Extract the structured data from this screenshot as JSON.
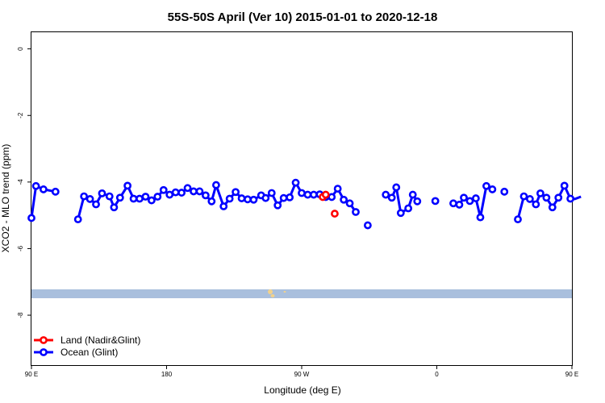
{
  "chart_data": {
    "type": "line",
    "title": "55S-50S April (Ver 10)   2015-01-01 to 2020-12-18",
    "xlabel": "Longitude (deg E)",
    "ylabel": "XCO2 - MLO trend (ppm)",
    "xlim": [
      90,
      450
    ],
    "ylim": [
      -9.5,
      0.5
    ],
    "grid": false,
    "legend_position": "bottom-left",
    "x_ticks": [
      {
        "value": 90,
        "label": "90 E"
      },
      {
        "value": 180,
        "label": "180"
      },
      {
        "value": 270,
        "label": "90 W"
      },
      {
        "value": 360,
        "label": "0"
      },
      {
        "value": 450,
        "label": "90 E"
      },
      {
        "value": 540,
        "label": "180"
      }
    ],
    "y_ticks": [
      {
        "value": 0,
        "label": "0"
      },
      {
        "value": -2,
        "label": "-2"
      },
      {
        "value": -4,
        "label": "-4"
      },
      {
        "value": -6,
        "label": "-6"
      },
      {
        "value": -8,
        "label": "-8"
      }
    ],
    "series": [
      {
        "name": "Land (Nadir&Glint)",
        "color": "#ff0000",
        "points": [
          [
            284,
            -4.45
          ],
          [
            286,
            -4.38
          ],
          [
            292,
            -4.95
          ]
        ]
      },
      {
        "name": "Ocean (Glint)",
        "color": "#0000ff",
        "segments": [
          [
            [
              90,
              -5.08
            ],
            [
              93,
              -4.12
            ],
            [
              98,
              -4.22
            ],
            [
              106,
              -4.29
            ]
          ],
          [
            [
              121,
              -5.12
            ],
            [
              125,
              -4.43
            ],
            [
              129,
              -4.51
            ],
            [
              133,
              -4.67
            ],
            [
              137,
              -4.34
            ],
            [
              142,
              -4.43
            ],
            [
              145,
              -4.76
            ],
            [
              149,
              -4.47
            ],
            [
              154,
              -4.11
            ],
            [
              158,
              -4.5
            ],
            [
              162,
              -4.5
            ],
            [
              166,
              -4.44
            ],
            [
              170,
              -4.55
            ],
            [
              174,
              -4.44
            ],
            [
              178,
              -4.24
            ],
            [
              182,
              -4.38
            ],
            [
              186,
              -4.31
            ],
            [
              190,
              -4.32
            ],
            [
              194,
              -4.18
            ],
            [
              198,
              -4.28
            ],
            [
              202,
              -4.28
            ],
            [
              206,
              -4.4
            ],
            [
              210,
              -4.58
            ],
            [
              213,
              -4.09
            ],
            [
              218,
              -4.73
            ],
            [
              222,
              -4.5
            ],
            [
              226,
              -4.3
            ],
            [
              230,
              -4.49
            ],
            [
              234,
              -4.52
            ],
            [
              238,
              -4.53
            ],
            [
              243,
              -4.4
            ],
            [
              246,
              -4.48
            ],
            [
              250,
              -4.33
            ],
            [
              254,
              -4.7
            ],
            [
              258,
              -4.48
            ],
            [
              262,
              -4.46
            ],
            [
              266,
              -4.02
            ],
            [
              270,
              -4.33
            ],
            [
              274,
              -4.38
            ],
            [
              278,
              -4.38
            ],
            [
              282,
              -4.37
            ],
            [
              286,
              -4.45
            ],
            [
              290,
              -4.45
            ],
            [
              294,
              -4.2
            ],
            [
              298,
              -4.53
            ],
            [
              302,
              -4.64
            ],
            [
              306,
              -4.9
            ]
          ]
        ],
        "isolated": [
          [
            314,
            -5.3
          ],
          [
            426,
            -4.5
          ],
          [
            435,
            -4.42
          ],
          [
            439,
            -4.45
          ]
        ],
        "segments_right": [
          [
            [
              326,
              -4.38
            ],
            [
              330,
              -4.47
            ],
            [
              333,
              -4.16
            ],
            [
              336,
              -4.93
            ],
            [
              341,
              -4.79
            ],
            [
              344,
              -4.38
            ],
            [
              347,
              -4.58
            ]
          ],
          [
            [
              359,
              -4.57
            ]
          ],
          [
            [
              371,
              -4.64
            ],
            [
              375,
              -4.68
            ],
            [
              378,
              -4.47
            ],
            [
              382,
              -4.57
            ],
            [
              386,
              -4.49
            ],
            [
              389,
              -5.06
            ],
            [
              393,
              -4.12
            ],
            [
              397,
              -4.22
            ]
          ],
          [
            [
              405,
              -4.29
            ]
          ],
          [
            [
              414,
              -5.12
            ],
            [
              418,
              -4.43
            ],
            [
              422,
              -4.51
            ],
            [
              426,
              -4.67
            ],
            [
              429,
              -4.34
            ],
            [
              433,
              -4.47
            ],
            [
              437,
              -4.76
            ],
            [
              441,
              -4.47
            ],
            [
              445,
              -4.11
            ],
            [
              449,
              -4.5
            ],
            [
              452,
              -4.51
            ],
            [
              456,
              -4.44
            ]
          ]
        ]
      }
    ]
  }
}
